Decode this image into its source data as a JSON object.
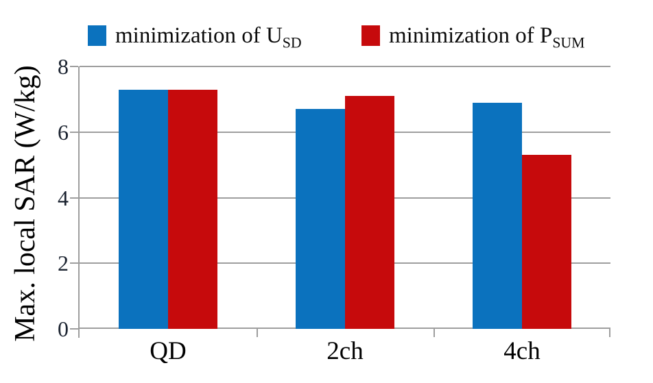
{
  "chart_data": {
    "type": "bar",
    "title": "",
    "categories": [
      "QD",
      "2ch",
      "4ch"
    ],
    "series": [
      {
        "name": "minimization of U_SD",
        "label_text": "minimization of U",
        "label_sub": "SD",
        "color": "#0B72BE",
        "values": [
          7.3,
          6.7,
          6.9
        ]
      },
      {
        "name": "minimization of P_SUM",
        "label_text": "minimization of P",
        "label_sub": "SUM",
        "color": "#C60A0C",
        "values": [
          7.3,
          7.1,
          5.3
        ]
      }
    ],
    "xlabel": "",
    "ylabel": "Max. local SAR (W/kg)",
    "ylim": [
      0,
      8
    ],
    "yticks": [
      0,
      2,
      4,
      6,
      8
    ],
    "grid": true,
    "legend_position": "top",
    "colors": {
      "grid": "#9E9E9E",
      "axis": "#9E9E9E",
      "ytick_label": "#1B2330",
      "category_label": "#000000",
      "background": "#FFFFFF"
    }
  }
}
